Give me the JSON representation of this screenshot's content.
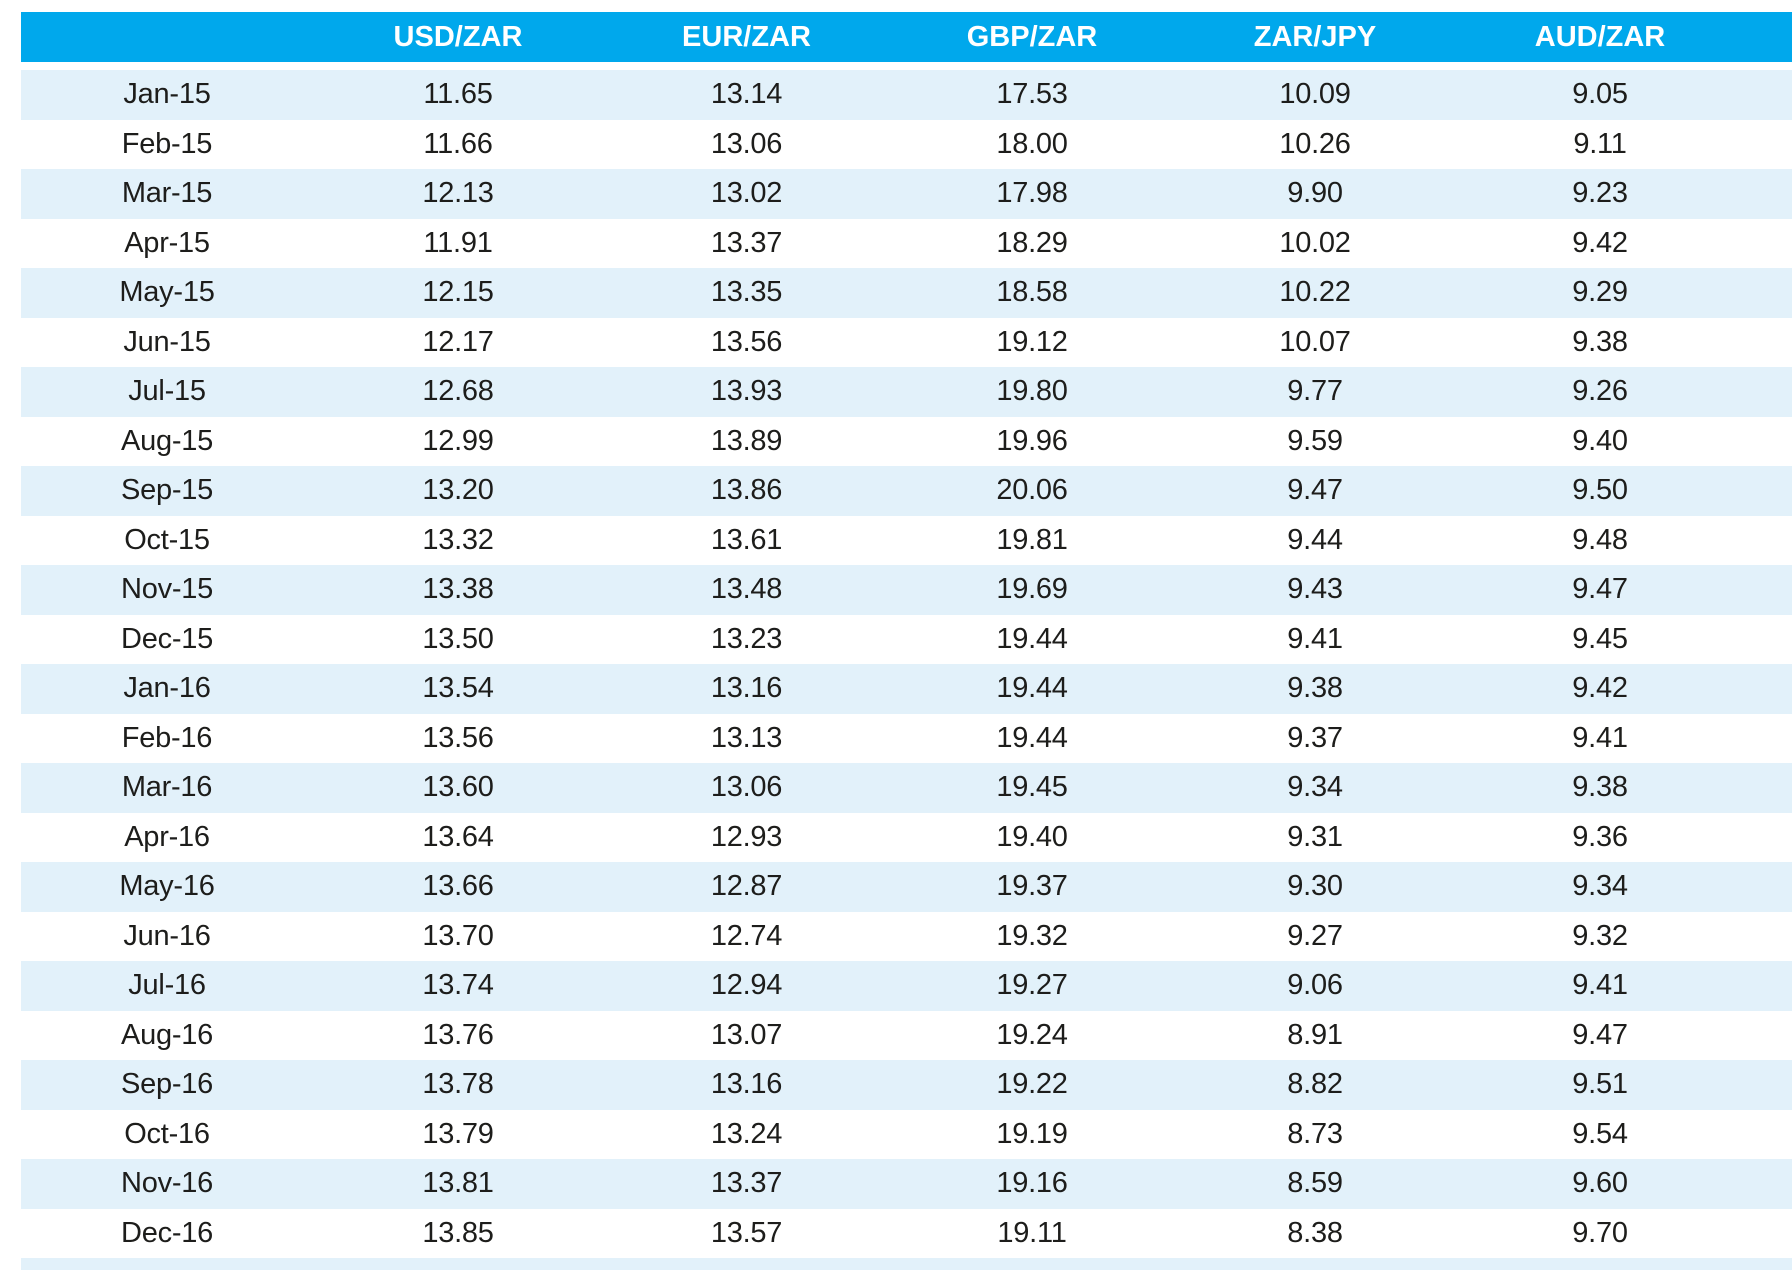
{
  "colors": {
    "header_bg": "#00a8ec",
    "header_text": "#ffffff",
    "stripe_bg": "#e2f1fa",
    "row_bg": "#ffffff",
    "cell_text": "#1d1d1b"
  },
  "chart_data": {
    "type": "table",
    "title": "",
    "columns": [
      "",
      "USD/ZAR",
      "EUR/ZAR",
      "GBP/ZAR",
      "ZAR/JPY",
      "AUD/ZAR"
    ],
    "categories": [
      "Jan-15",
      "Feb-15",
      "Mar-15",
      "Apr-15",
      "May-15",
      "Jun-15",
      "Jul-15",
      "Aug-15",
      "Sep-15",
      "Oct-15",
      "Nov-15",
      "Dec-15",
      "Jan-16",
      "Feb-16",
      "Mar-16",
      "Apr-16",
      "May-16",
      "Jun-16",
      "Jul-16",
      "Aug-16",
      "Sep-16",
      "Oct-16",
      "Nov-16",
      "Dec-16"
    ],
    "series": [
      {
        "name": "USD/ZAR",
        "values": [
          "11.65",
          "11.66",
          "12.13",
          "11.91",
          "12.15",
          "12.17",
          "12.68",
          "12.99",
          "13.20",
          "13.32",
          "13.38",
          "13.50",
          "13.54",
          "13.56",
          "13.60",
          "13.64",
          "13.66",
          "13.70",
          "13.74",
          "13.76",
          "13.78",
          "13.79",
          "13.81",
          "13.85"
        ]
      },
      {
        "name": "EUR/ZAR",
        "values": [
          "13.14",
          "13.06",
          "13.02",
          "13.37",
          "13.35",
          "13.56",
          "13.93",
          "13.89",
          "13.86",
          "13.61",
          "13.48",
          "13.23",
          "13.16",
          "13.13",
          "13.06",
          "12.93",
          "12.87",
          "12.74",
          "12.94",
          "13.07",
          "13.16",
          "13.24",
          "13.37",
          "13.57"
        ]
      },
      {
        "name": "GBP/ZAR",
        "values": [
          "17.53",
          "18.00",
          "17.98",
          "18.29",
          "18.58",
          "19.12",
          "19.80",
          "19.96",
          "20.06",
          "19.81",
          "19.69",
          "19.44",
          "19.44",
          "19.44",
          "19.45",
          "19.40",
          "19.37",
          "19.32",
          "19.27",
          "19.24",
          "19.22",
          "19.19",
          "19.16",
          "19.11"
        ]
      },
      {
        "name": "ZAR/JPY",
        "values": [
          "10.09",
          "10.26",
          "9.90",
          "10.02",
          "10.22",
          "10.07",
          "9.77",
          "9.59",
          "9.47",
          "9.44",
          "9.43",
          "9.41",
          "9.38",
          "9.37",
          "9.34",
          "9.31",
          "9.30",
          "9.27",
          "9.06",
          "8.91",
          "8.82",
          "8.73",
          "8.59",
          "8.38"
        ]
      },
      {
        "name": "AUD/ZAR",
        "values": [
          "9.05",
          "9.11",
          "9.23",
          "9.42",
          "9.29",
          "9.38",
          "9.26",
          "9.40",
          "9.50",
          "9.48",
          "9.47",
          "9.45",
          "9.42",
          "9.41",
          "9.38",
          "9.36",
          "9.34",
          "9.32",
          "9.41",
          "9.47",
          "9.51",
          "9.54",
          "9.60",
          "9.70"
        ]
      }
    ],
    "layout_hints": {
      "grid": false,
      "zebra_striping": true,
      "first_data_row_shaded": true,
      "header_position": "top"
    }
  }
}
